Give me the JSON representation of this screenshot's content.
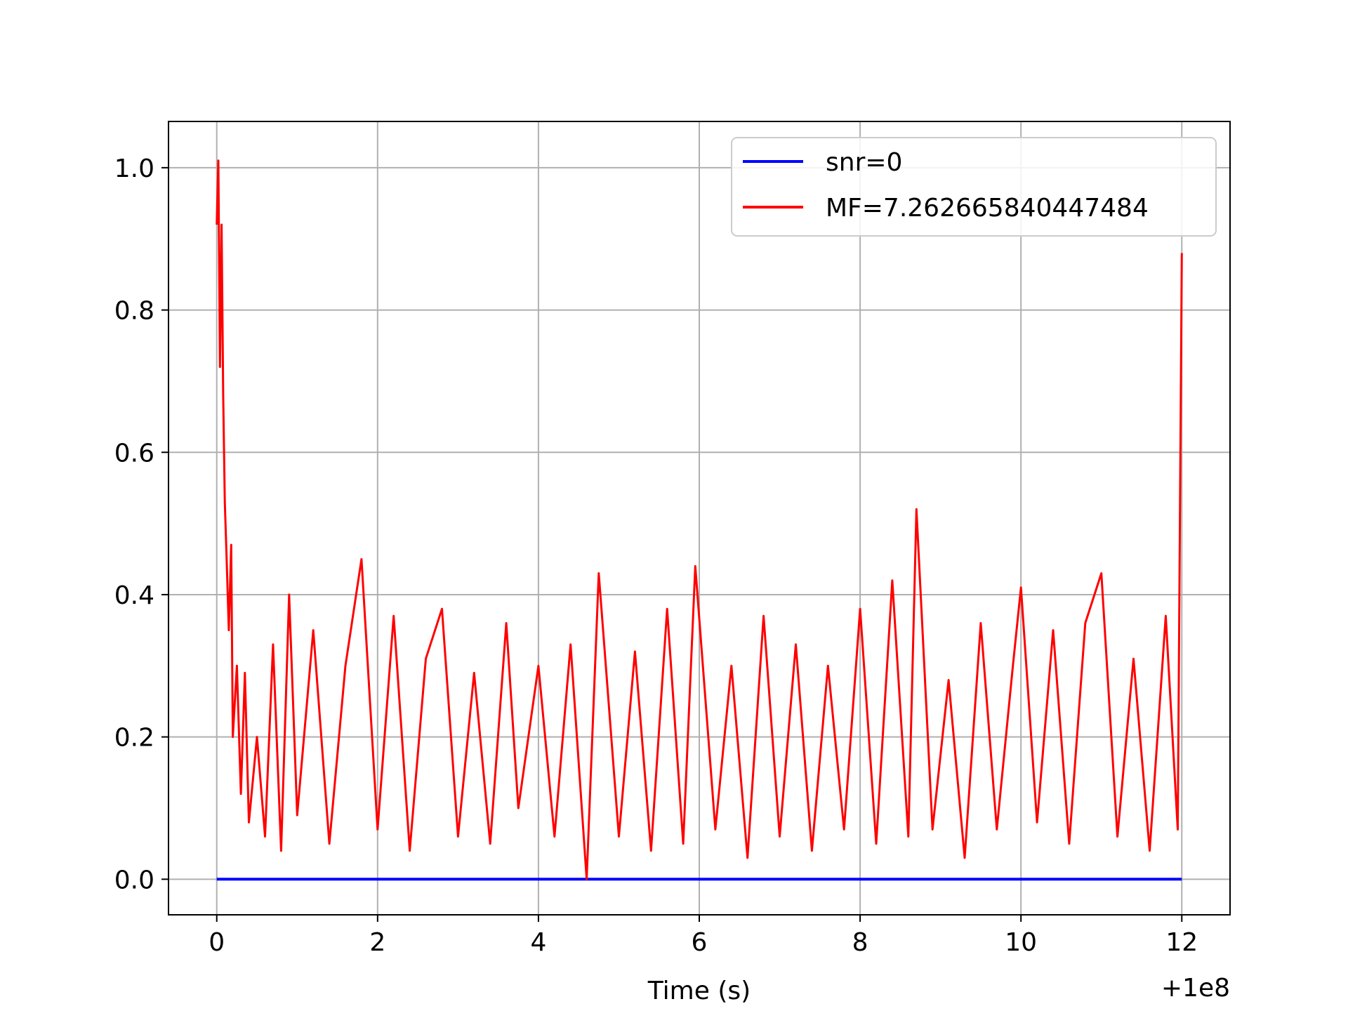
{
  "chart_data": {
    "type": "line",
    "xlabel": "Time (s)",
    "ylabel": "",
    "x_offset_label": "+1e8",
    "xlim": [
      -0.6,
      12.6
    ],
    "ylim": [
      -0.05,
      1.065
    ],
    "x_ticks": [
      0,
      2,
      4,
      6,
      8,
      10,
      12
    ],
    "y_ticks": [
      0.0,
      0.2,
      0.4,
      0.6,
      0.8,
      1.0
    ],
    "x_tick_labels": [
      "0",
      "2",
      "4",
      "6",
      "8",
      "10",
      "12"
    ],
    "y_tick_labels": [
      "0.0",
      "0.2",
      "0.4",
      "0.6",
      "0.8",
      "1.0"
    ],
    "grid": true,
    "legend_position": "top-right",
    "colors": {
      "snr": "#0000ff",
      "mf": "#ff0000",
      "grid": "#b0b0b0"
    },
    "series": [
      {
        "name": "snr=0",
        "color": "#0000ff",
        "x": [
          0,
          12
        ],
        "y": [
          0,
          0
        ]
      },
      {
        "name": "MF=7.262665840447484",
        "color": "#ff0000",
        "x": [
          0.0,
          0.02,
          0.04,
          0.06,
          0.08,
          0.1,
          0.12,
          0.15,
          0.18,
          0.2,
          0.25,
          0.3,
          0.35,
          0.4,
          0.5,
          0.6,
          0.7,
          0.8,
          0.9,
          1.0,
          1.2,
          1.4,
          1.6,
          1.8,
          2.0,
          2.2,
          2.4,
          2.6,
          2.8,
          3.0,
          3.2,
          3.4,
          3.6,
          3.75,
          4.0,
          4.2,
          4.4,
          4.6,
          4.75,
          5.0,
          5.2,
          5.4,
          5.6,
          5.8,
          5.95,
          6.2,
          6.4,
          6.6,
          6.8,
          7.0,
          7.2,
          7.4,
          7.6,
          7.8,
          8.0,
          8.2,
          8.4,
          8.6,
          8.7,
          8.9,
          9.1,
          9.3,
          9.5,
          9.7,
          9.9,
          10.0,
          10.2,
          10.4,
          10.6,
          10.8,
          11.0,
          11.2,
          11.4,
          11.6,
          11.8,
          11.95,
          12.0
        ],
        "y": [
          0.92,
          1.01,
          0.72,
          0.92,
          0.68,
          0.53,
          0.46,
          0.35,
          0.47,
          0.2,
          0.3,
          0.12,
          0.29,
          0.08,
          0.2,
          0.06,
          0.33,
          0.04,
          0.4,
          0.09,
          0.35,
          0.05,
          0.3,
          0.45,
          0.07,
          0.37,
          0.04,
          0.31,
          0.38,
          0.06,
          0.29,
          0.05,
          0.36,
          0.1,
          0.3,
          0.06,
          0.33,
          0.0,
          0.43,
          0.06,
          0.32,
          0.04,
          0.38,
          0.05,
          0.44,
          0.07,
          0.3,
          0.03,
          0.37,
          0.06,
          0.33,
          0.04,
          0.3,
          0.07,
          0.38,
          0.05,
          0.42,
          0.06,
          0.52,
          0.07,
          0.28,
          0.03,
          0.36,
          0.07,
          0.3,
          0.41,
          0.08,
          0.35,
          0.05,
          0.36,
          0.43,
          0.06,
          0.31,
          0.04,
          0.37,
          0.07,
          0.88
        ]
      }
    ]
  }
}
